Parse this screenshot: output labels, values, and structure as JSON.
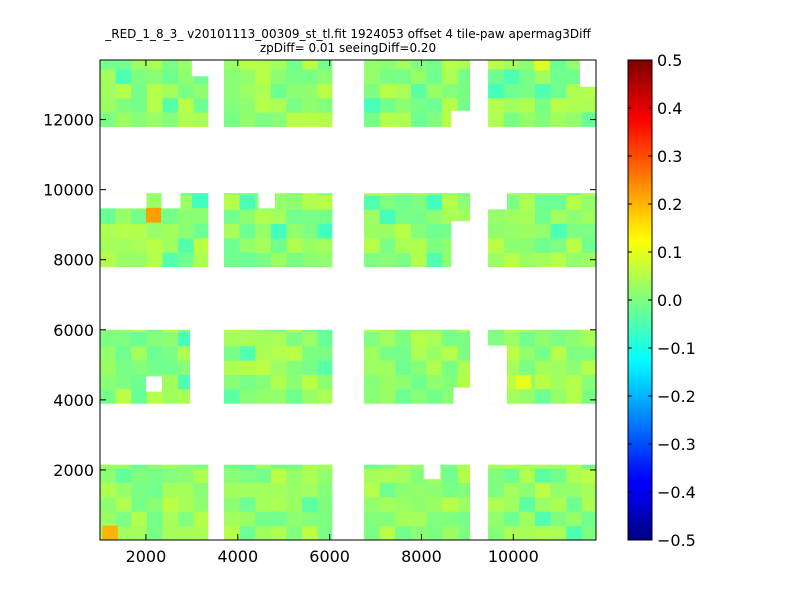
{
  "chart_data": {
    "type": "heatmap",
    "title_line1": "_RED_1_8_3_ v20101113_00309_st_tl.fit 1924053 offset 4 tile-paw apermag3Diff",
    "title_line2": "zpDiff= 0.01 seeingDiff=0.20",
    "xlim": [
      1000,
      11800
    ],
    "ylim": [
      0,
      13700
    ],
    "x_ticks": [
      2000,
      4000,
      6000,
      8000,
      10000
    ],
    "y_ticks": [
      2000,
      4000,
      6000,
      8000,
      10000,
      12000
    ],
    "colorbar": {
      "colormap": "jet",
      "vmin": -0.5,
      "vmax": 0.5,
      "ticks": [
        "0.5",
        "0.4",
        "0.3",
        "0.2",
        "0.1",
        "0.0",
        "−0.1",
        "−0.2",
        "−0.3",
        "−0.4",
        "−0.5"
      ]
    },
    "cell_size": {
      "dx": 340,
      "dy": 410
    },
    "column_blocks": [
      {
        "x0": 1000,
        "x1": 2950,
        "x1_ext": 3350
      },
      {
        "x0": 3700,
        "x1": 6050
      },
      {
        "x0": 6750,
        "x1": 9050
      },
      {
        "x0": 9450,
        "x1": 11800
      }
    ],
    "row_blocks": [
      {
        "y0": 0,
        "y1": 2150
      },
      {
        "y0": 3900,
        "y1": 6000
      },
      {
        "y0": 7800,
        "y1": 9900
      },
      {
        "y0": 11800,
        "y1": 13700
      }
    ],
    "typical_value": 0.02,
    "special_cells": [
      {
        "x": 1050,
        "y": 0,
        "w": 340,
        "h": 410,
        "value": 0.2
      },
      {
        "x": 2000,
        "y": 9060,
        "w": 330,
        "h": 420,
        "value": 0.22
      },
      {
        "x": 10050,
        "y": 4300,
        "w": 340,
        "h": 410,
        "value": 0.1
      },
      {
        "x": 10450,
        "y": 13400,
        "w": 340,
        "h": 300,
        "value": 0.09
      },
      {
        "x": 3000,
        "y": 9480,
        "w": 350,
        "h": 420,
        "value": -0.06
      }
    ],
    "holes": [
      {
        "x": 2000,
        "y": 4250,
        "w": 340,
        "h": 420
      },
      {
        "x": 1000,
        "y": 9480,
        "w": 1000,
        "h": 420
      },
      {
        "x": 2340,
        "y": 9480,
        "w": 400,
        "h": 420
      },
      {
        "x": 3000,
        "y": 13250,
        "w": 350,
        "h": 450
      },
      {
        "x": 3000,
        "y": 3900,
        "w": 350,
        "h": 1850
      },
      {
        "x": 4450,
        "y": 9480,
        "w": 350,
        "h": 420
      },
      {
        "x": 8650,
        "y": 7800,
        "w": 400,
        "h": 1300
      },
      {
        "x": 8700,
        "y": 3900,
        "w": 350,
        "h": 450
      },
      {
        "x": 9450,
        "y": 3900,
        "w": 400,
        "h": 1650
      },
      {
        "x": 9450,
        "y": 9450,
        "w": 400,
        "h": 450
      },
      {
        "x": 8650,
        "y": 11800,
        "w": 400,
        "h": 450
      },
      {
        "x": 8050,
        "y": 1750,
        "w": 350,
        "h": 400
      },
      {
        "x": 11450,
        "y": 12950,
        "w": 350,
        "h": 750
      }
    ]
  }
}
